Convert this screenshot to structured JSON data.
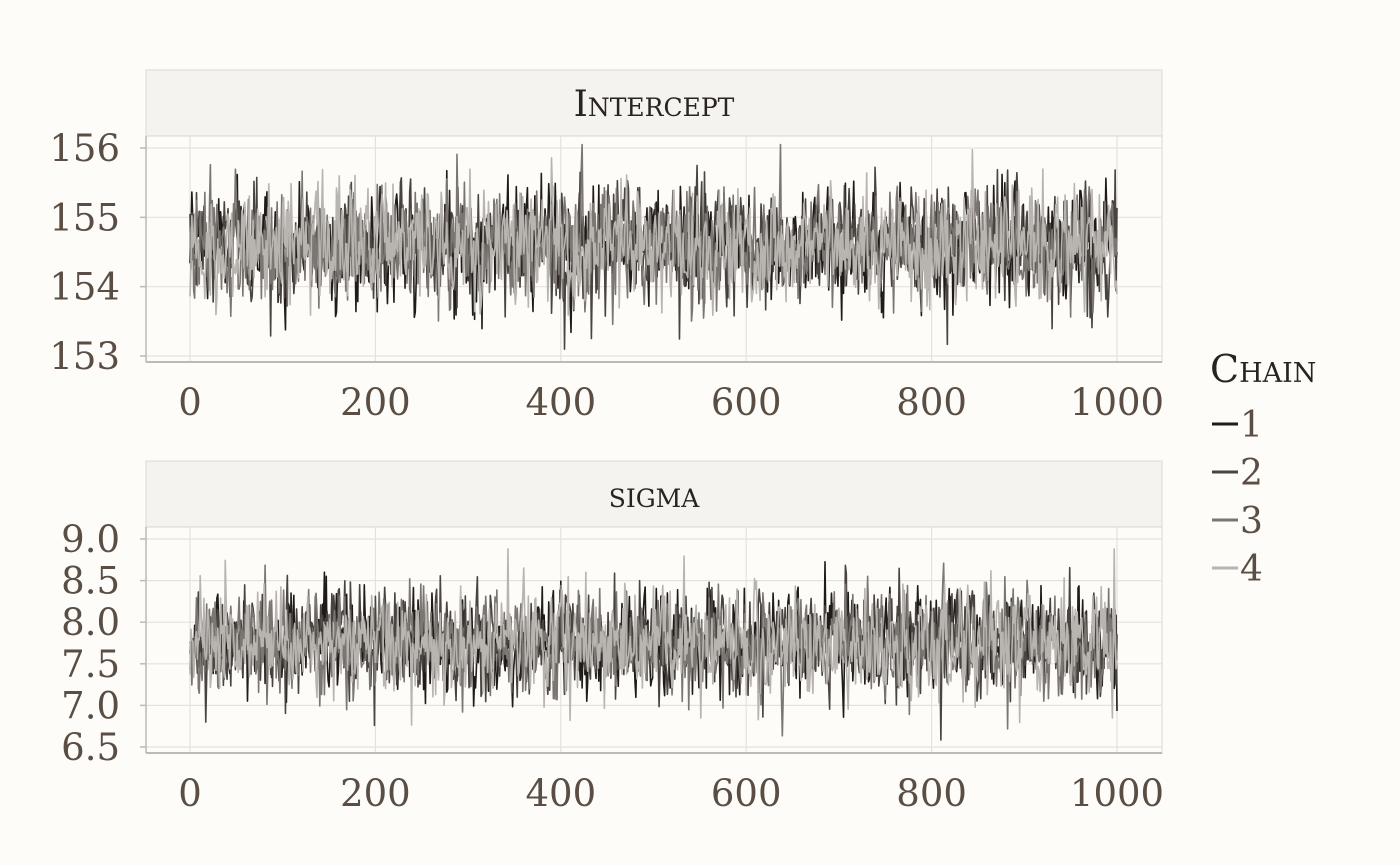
{
  "chart_data": [
    {
      "type": "line",
      "title": "Intercept",
      "xlim": [
        0,
        1000
      ],
      "ylim": [
        153,
        156
      ],
      "xticks": [
        0,
        200,
        400,
        600,
        800,
        1000
      ],
      "xtick_labels": [
        "0",
        "200",
        "400",
        "600",
        "800",
        "1000"
      ],
      "yticks": [
        153,
        154,
        155,
        156
      ],
      "ytick_labels": [
        "153",
        "154",
        "155",
        "156"
      ],
      "mean": 154.6,
      "sd": 0.42,
      "observed_min": 153.1,
      "observed_max": 156.05,
      "n_iterations": 1000
    },
    {
      "type": "line",
      "title": "sigma",
      "xlim": [
        0,
        1000
      ],
      "ylim": [
        6.5,
        9.0
      ],
      "xticks": [
        0,
        200,
        400,
        600,
        800,
        1000
      ],
      "xtick_labels": [
        "0",
        "200",
        "400",
        "600",
        "800",
        "1000"
      ],
      "yticks": [
        6.5,
        7.0,
        7.5,
        8.0,
        8.5,
        9.0
      ],
      "ytick_labels": [
        "6.5",
        "7.0",
        "7.5",
        "8.0",
        "8.5",
        "9.0"
      ],
      "mean": 7.75,
      "sd": 0.32,
      "observed_min": 6.55,
      "observed_max": 8.88,
      "n_iterations": 1000
    }
  ],
  "legend": {
    "title": "Chain",
    "items": [
      {
        "label": "1",
        "color": "#1f1b18"
      },
      {
        "label": "2",
        "color": "#4a4440"
      },
      {
        "label": "3",
        "color": "#7c7672"
      },
      {
        "label": "4",
        "color": "#b8b4b0"
      }
    ]
  },
  "colors": {
    "background": "#fdfcf8",
    "panel": "#fdfcf8",
    "strip": "#f4f3f0",
    "grid": "#e4e2de",
    "axis": "#bdbab5"
  }
}
